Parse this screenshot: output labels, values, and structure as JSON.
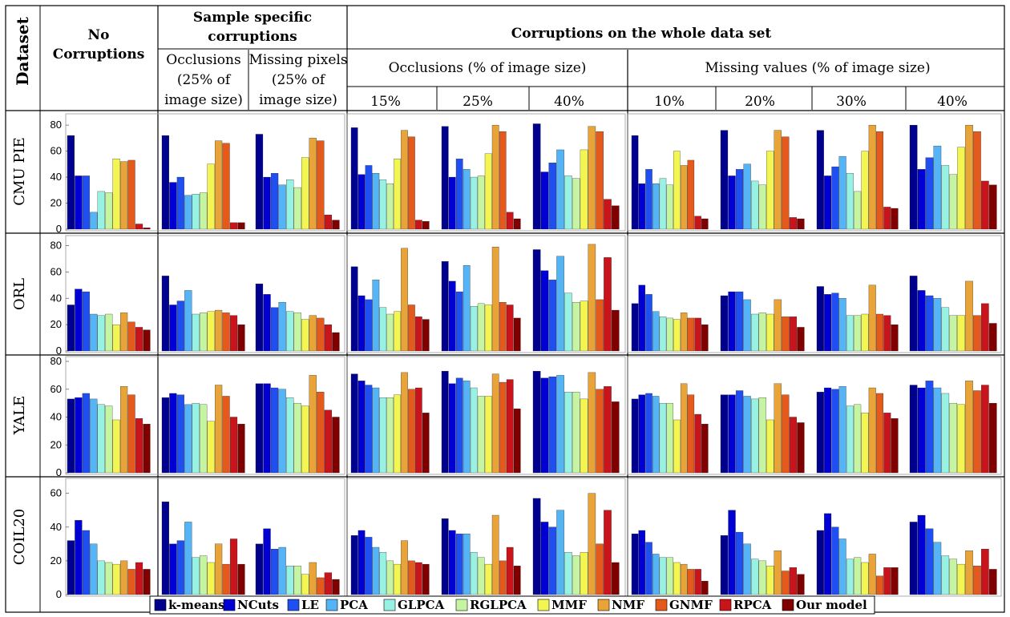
{
  "table": {
    "dataset_header": "Dataset",
    "no_corruptions_header": [
      "No",
      "Corruptions"
    ],
    "sample_specific_header": [
      "Sample specific",
      "corruptions"
    ],
    "whole_dataset_header": "Corruptions on the whole data set",
    "occlusions_sample_header": [
      "Occlusions",
      "(25% of",
      "image size)"
    ],
    "missing_pixels_sample_header": [
      "Missing pixels",
      "(25% of",
      "image size)"
    ],
    "occlusions_whole_header": "Occlusions (% of image size)",
    "missing_values_whole_header": "Missing values (% of image size)",
    "occlusion_levels": [
      "15%",
      "25%",
      "40%"
    ],
    "missing_levels": [
      "10%",
      "20%",
      "30%",
      "40%"
    ]
  },
  "colors": {
    "k-means": "#00008f",
    "NCuts": "#0000d4",
    "LE": "#1f4ff0",
    "PCA": "#54b4f5",
    "GLPCA": "#98f2e4",
    "RGLPCA": "#c5f5a3",
    "MMF": "#f3f550",
    "NMF": "#e8a339",
    "GNMF": "#e35a1c",
    "RPCA": "#c8141a",
    "Our model": "#800000"
  },
  "legend": [
    "k-means",
    "NCuts",
    "LE",
    "PCA",
    "GLPCA",
    "RGLPCA",
    "MMF",
    "NMF",
    "GNMF",
    "RPCA",
    "Our model"
  ],
  "chart_data": {
    "type": "bar",
    "methods": [
      "k-means",
      "NCuts",
      "LE",
      "PCA",
      "GLPCA",
      "RGLPCA",
      "MMF",
      "NMF",
      "GNMF",
      "RPCA",
      "Our model"
    ],
    "conditions": [
      "No Corruptions",
      "Occlusions (25% of image size)",
      "Missing pixels (25% of image size)",
      "Occlusions 15%",
      "Occlusions 25%",
      "Occlusions 40%",
      "Missing values 10%",
      "Missing values 20%",
      "Missing values 30%",
      "Missing values 40%"
    ],
    "datasets": [
      {
        "name": "CMU PIE",
        "yticks": [
          "0",
          "20",
          "40",
          "60",
          "80"
        ],
        "ylim": [
          0,
          85
        ],
        "values": [
          [
            72,
            41,
            41,
            13,
            29,
            28,
            54,
            52,
            53,
            4,
            1
          ],
          [
            72,
            36,
            40,
            26,
            27,
            28,
            50,
            68,
            66,
            5,
            5
          ],
          [
            73,
            40,
            43,
            34,
            38,
            32,
            55,
            70,
            68,
            11,
            7
          ],
          [
            78,
            42,
            49,
            43,
            38,
            35,
            54,
            76,
            71,
            7,
            6
          ],
          [
            79,
            40,
            54,
            46,
            40,
            41,
            58,
            80,
            75,
            13,
            8
          ],
          [
            81,
            44,
            51,
            61,
            41,
            39,
            61,
            79,
            75,
            23,
            18
          ],
          [
            72,
            35,
            46,
            35,
            39,
            34,
            60,
            49,
            53,
            10,
            8
          ],
          [
            76,
            41,
            46,
            50,
            37,
            34,
            60,
            76,
            71,
            9,
            8
          ],
          [
            76,
            41,
            48,
            56,
            43,
            29,
            60,
            80,
            75,
            17,
            16
          ],
          [
            80,
            46,
            55,
            64,
            49,
            42,
            63,
            80,
            75,
            37,
            34
          ]
        ]
      },
      {
        "name": "ORL",
        "yticks": [
          "0",
          "20",
          "40",
          "60",
          "80"
        ],
        "ylim": [
          0,
          84
        ],
        "values": [
          [
            35,
            47,
            45,
            28,
            27,
            28,
            20,
            29,
            22,
            18,
            16
          ],
          [
            57,
            35,
            38,
            46,
            28,
            29,
            30,
            31,
            29,
            27,
            20
          ],
          [
            51,
            43,
            33,
            37,
            30,
            29,
            24,
            27,
            25,
            20,
            14
          ],
          [
            64,
            42,
            39,
            54,
            33,
            28,
            30,
            78,
            35,
            26,
            24
          ],
          [
            68,
            53,
            45,
            65,
            34,
            36,
            35,
            79,
            37,
            35,
            25
          ],
          [
            77,
            61,
            54,
            72,
            44,
            37,
            38,
            81,
            39,
            71,
            31
          ],
          [
            36,
            50,
            43,
            30,
            26,
            25,
            24,
            29,
            25,
            25,
            20
          ],
          [
            42,
            45,
            45,
            39,
            28,
            29,
            28,
            39,
            26,
            26,
            18
          ],
          [
            49,
            43,
            44,
            40,
            27,
            27,
            28,
            50,
            28,
            27,
            20
          ],
          [
            57,
            46,
            42,
            40,
            33,
            27,
            27,
            53,
            27,
            36,
            21
          ]
        ]
      },
      {
        "name": "YALE",
        "yticks": [
          "0",
          "20",
          "40",
          "60",
          "80"
        ],
        "ylim": [
          0,
          80
        ],
        "values": [
          [
            53,
            54,
            57,
            53,
            49,
            48,
            38,
            62,
            56,
            39,
            35
          ],
          [
            54,
            57,
            56,
            49,
            50,
            49,
            37,
            63,
            55,
            40,
            35
          ],
          [
            64,
            64,
            61,
            60,
            54,
            50,
            48,
            70,
            58,
            45,
            40
          ],
          [
            71,
            66,
            63,
            61,
            54,
            54,
            56,
            72,
            60,
            61,
            43
          ],
          [
            73,
            64,
            68,
            66,
            61,
            55,
            55,
            71,
            65,
            67,
            46
          ],
          [
            73,
            68,
            69,
            70,
            58,
            58,
            53,
            72,
            60,
            62,
            51
          ],
          [
            53,
            56,
            57,
            55,
            50,
            50,
            38,
            64,
            56,
            42,
            35
          ],
          [
            56,
            56,
            59,
            55,
            53,
            54,
            38,
            64,
            56,
            40,
            36
          ],
          [
            58,
            61,
            60,
            62,
            48,
            49,
            43,
            61,
            57,
            43,
            39
          ],
          [
            63,
            61,
            66,
            61,
            57,
            50,
            49,
            66,
            59,
            63,
            50
          ]
        ]
      },
      {
        "name": "COIL20",
        "yticks": [
          "0",
          "20",
          "40",
          "60"
        ],
        "ylim": [
          0,
          66
        ],
        "values": [
          [
            32,
            44,
            38,
            30,
            20,
            19,
            18,
            20,
            15,
            19,
            15
          ],
          [
            55,
            30,
            32,
            43,
            22,
            23,
            19,
            30,
            18,
            33,
            18
          ],
          [
            30,
            39,
            27,
            28,
            17,
            17,
            12,
            19,
            10,
            13,
            9
          ],
          [
            35,
            38,
            34,
            28,
            25,
            20,
            18,
            32,
            20,
            19,
            18
          ],
          [
            45,
            38,
            36,
            36,
            25,
            22,
            18,
            47,
            20,
            28,
            17
          ],
          [
            57,
            43,
            40,
            50,
            25,
            23,
            25,
            60,
            30,
            50,
            19
          ],
          [
            36,
            38,
            31,
            24,
            22,
            22,
            19,
            18,
            15,
            15,
            8
          ],
          [
            35,
            50,
            37,
            30,
            21,
            20,
            17,
            26,
            14,
            16,
            12
          ],
          [
            38,
            48,
            40,
            33,
            21,
            22,
            19,
            24,
            11,
            16,
            16
          ],
          [
            43,
            47,
            39,
            31,
            23,
            21,
            18,
            26,
            17,
            27,
            15
          ]
        ]
      }
    ]
  }
}
